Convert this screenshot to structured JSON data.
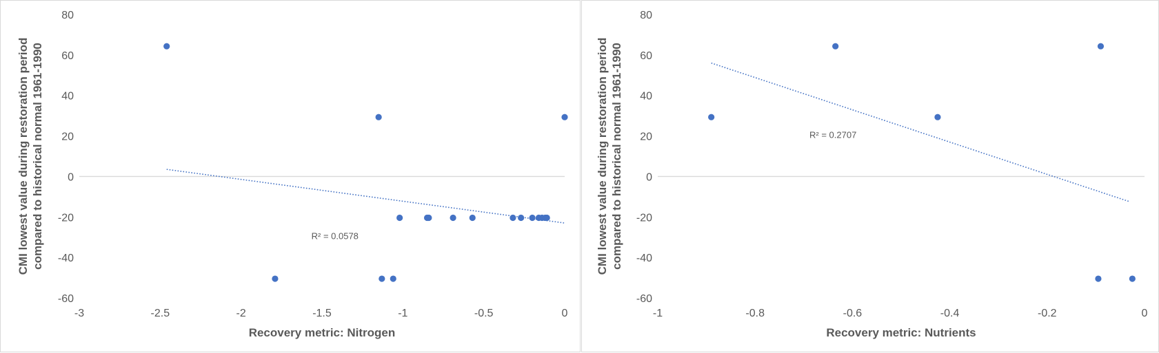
{
  "chart_data": [
    {
      "type": "scatter",
      "xlabel": "Recovery metric: Nitrogen",
      "ylabel_lines": [
        "CMI lowest value during restoration period",
        "compared to historical normal 1961-1990"
      ],
      "xlim": [
        -3,
        0
      ],
      "ylim": [
        -60,
        80
      ],
      "xticks": [
        -3,
        -2.5,
        -2,
        -1.5,
        -1,
        -0.5,
        0
      ],
      "yticks": [
        -60,
        -40,
        -20,
        0,
        20,
        40,
        60,
        80
      ],
      "grid": false,
      "zero_line": true,
      "marker_color": "#4472C4",
      "trendline": {
        "style": "dotted-linear",
        "color": "#4472C4",
        "x0": -2.46,
        "y0": 3.5,
        "x1": 0,
        "y1": -23
      },
      "r2_label": "R² = 0.0578",
      "r2_position": {
        "x": -1.42,
        "y": -31
      },
      "points": [
        {
          "x": -2.46,
          "y": 64.3
        },
        {
          "x": -1.79,
          "y": -50.5
        },
        {
          "x": -1.15,
          "y": 29.3
        },
        {
          "x": -1.13,
          "y": -50.5
        },
        {
          "x": -1.06,
          "y": -50.5
        },
        {
          "x": -1.02,
          "y": -20.4
        },
        {
          "x": -0.85,
          "y": -20.4
        },
        {
          "x": -0.84,
          "y": -20.4
        },
        {
          "x": -0.69,
          "y": -20.4
        },
        {
          "x": -0.57,
          "y": -20.4
        },
        {
          "x": -0.32,
          "y": -20.4
        },
        {
          "x": -0.27,
          "y": -20.4
        },
        {
          "x": -0.2,
          "y": -20.4
        },
        {
          "x": -0.16,
          "y": -20.4
        },
        {
          "x": -0.14,
          "y": -20.4
        },
        {
          "x": -0.12,
          "y": -20.4
        },
        {
          "x": -0.11,
          "y": -20.4
        },
        {
          "x": 0.0,
          "y": 29.3
        }
      ]
    },
    {
      "type": "scatter",
      "xlabel": "Recovery metric: Nutrients",
      "ylabel_lines": [
        "CMI lowest value during restoration period",
        "compared to historical normal 1961-1990"
      ],
      "xlim": [
        -1,
        0
      ],
      "ylim": [
        -60,
        80
      ],
      "xticks": [
        -1,
        -0.8,
        -0.6,
        -0.4,
        -0.2,
        0
      ],
      "yticks": [
        -60,
        -40,
        -20,
        0,
        20,
        40,
        60,
        80
      ],
      "grid": false,
      "zero_line": true,
      "marker_color": "#4472C4",
      "trendline": {
        "style": "dotted-linear",
        "color": "#4472C4",
        "x0": -0.89,
        "y0": 56,
        "x1": -0.03,
        "y1": -12.5
      },
      "r2_label": "R² = 0.2707",
      "r2_position": {
        "x": -0.64,
        "y": 19
      },
      "points": [
        {
          "x": -0.89,
          "y": 29.3
        },
        {
          "x": -0.635,
          "y": 64.3
        },
        {
          "x": -0.425,
          "y": 29.3
        },
        {
          "x": -0.095,
          "y": -50.5
        },
        {
          "x": -0.09,
          "y": 64.3
        },
        {
          "x": -0.025,
          "y": -50.5
        }
      ]
    }
  ]
}
